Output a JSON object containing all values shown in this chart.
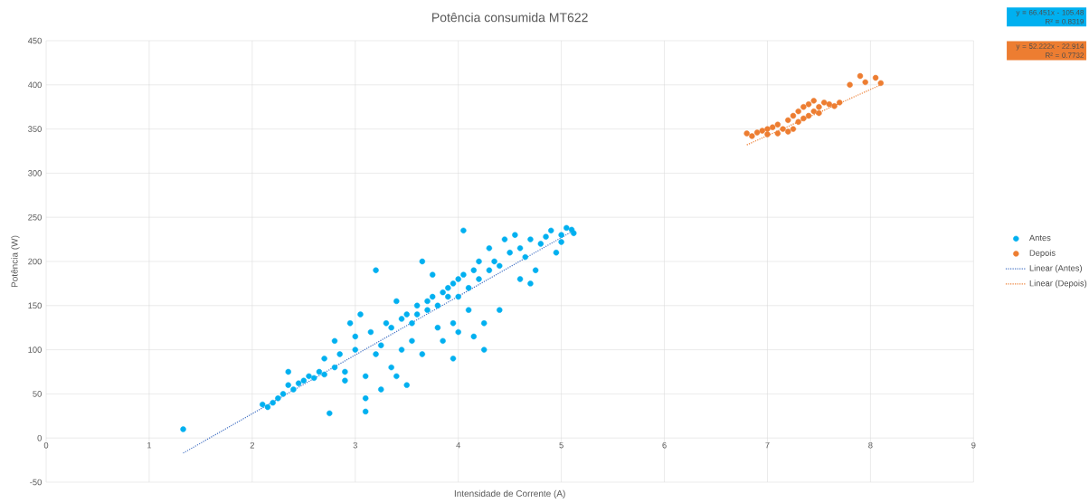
{
  "chart_data": {
    "type": "scatter",
    "title": "Potência consumida MT622",
    "xlabel": "Intensidade de Corrente (A)",
    "ylabel": "Potência (W)",
    "xlim": [
      0,
      9
    ],
    "xticks": [
      0,
      1,
      2,
      3,
      4,
      5,
      6,
      7,
      8,
      9
    ],
    "ylim": [
      -50,
      450
    ],
    "yticks": [
      -50,
      0,
      50,
      100,
      150,
      200,
      250,
      300,
      350,
      400,
      450
    ],
    "grid": true,
    "legend": "right",
    "annotations": [
      "y = 66.451x - 105.48",
      "R² = 0.8319",
      "y = 52.222x - 22.914",
      "R² = 0.7732"
    ],
    "series": [
      {
        "name": "Antes",
        "color": "#00b0f0",
        "marker": "circle",
        "x": [
          1.33,
          2.1,
          2.15,
          2.2,
          2.25,
          2.3,
          2.35,
          2.35,
          2.4,
          2.45,
          2.5,
          2.55,
          2.6,
          2.65,
          2.7,
          2.7,
          2.75,
          2.8,
          2.8,
          2.85,
          2.9,
          2.9,
          2.95,
          3.0,
          3.0,
          3.05,
          3.1,
          3.1,
          3.1,
          3.15,
          3.2,
          3.2,
          3.25,
          3.25,
          3.3,
          3.35,
          3.35,
          3.4,
          3.4,
          3.45,
          3.45,
          3.5,
          3.5,
          3.55,
          3.55,
          3.6,
          3.6,
          3.65,
          3.65,
          3.7,
          3.7,
          3.75,
          3.75,
          3.8,
          3.8,
          3.85,
          3.85,
          3.9,
          3.9,
          3.95,
          3.95,
          3.95,
          4.0,
          4.0,
          4.0,
          4.05,
          4.05,
          4.1,
          4.1,
          4.15,
          4.15,
          4.2,
          4.2,
          4.25,
          4.25,
          4.3,
          4.3,
          4.35,
          4.4,
          4.4,
          4.45,
          4.5,
          4.55,
          4.6,
          4.6,
          4.65,
          4.7,
          4.7,
          4.75,
          4.8,
          4.85,
          4.9,
          4.95,
          5.0,
          5.0,
          5.05,
          5.1,
          5.12
        ],
        "values": [
          10,
          38,
          35,
          40,
          45,
          50,
          60,
          75,
          55,
          62,
          65,
          70,
          68,
          75,
          72,
          90,
          28,
          80,
          110,
          95,
          75,
          65,
          130,
          100,
          115,
          140,
          30,
          45,
          70,
          120,
          95,
          190,
          55,
          105,
          130,
          80,
          125,
          70,
          155,
          135,
          100,
          140,
          60,
          130,
          110,
          150,
          140,
          200,
          95,
          145,
          155,
          185,
          160,
          150,
          125,
          165,
          110,
          170,
          160,
          175,
          130,
          90,
          180,
          160,
          120,
          235,
          185,
          170,
          145,
          190,
          115,
          180,
          200,
          130,
          100,
          190,
          215,
          200,
          195,
          145,
          225,
          210,
          230,
          215,
          180,
          205,
          225,
          175,
          190,
          220,
          228,
          235,
          210,
          230,
          222,
          238,
          236,
          232
        ]
      },
      {
        "name": "Depois",
        "color": "#ed7d31",
        "marker": "circle",
        "x": [
          6.8,
          6.85,
          6.9,
          6.95,
          7.0,
          7.0,
          7.05,
          7.1,
          7.1,
          7.15,
          7.2,
          7.2,
          7.25,
          7.25,
          7.3,
          7.3,
          7.35,
          7.35,
          7.4,
          7.4,
          7.45,
          7.45,
          7.5,
          7.5,
          7.55,
          7.6,
          7.65,
          7.7,
          7.8,
          7.9,
          7.95,
          8.05,
          8.1
        ],
        "values": [
          345,
          342,
          346,
          348,
          350,
          344,
          352,
          345,
          355,
          350,
          360,
          347,
          365,
          350,
          370,
          358,
          375,
          362,
          378,
          365,
          370,
          382,
          375,
          368,
          380,
          378,
          376,
          380,
          400,
          410,
          403,
          408,
          402
        ]
      },
      {
        "name": "Linear (Antes)",
        "type": "line",
        "line_style": "dotted",
        "marker": "none",
        "color": "#4472c4",
        "x": [
          1.33,
          5.12
        ],
        "values": [
          -17,
          235
        ]
      },
      {
        "name": "Linear (Depois)",
        "type": "line",
        "line_style": "dotted",
        "marker": "none",
        "color": "#ed7d31",
        "x": [
          6.8,
          8.1
        ],
        "values": [
          332,
          400
        ]
      }
    ]
  }
}
